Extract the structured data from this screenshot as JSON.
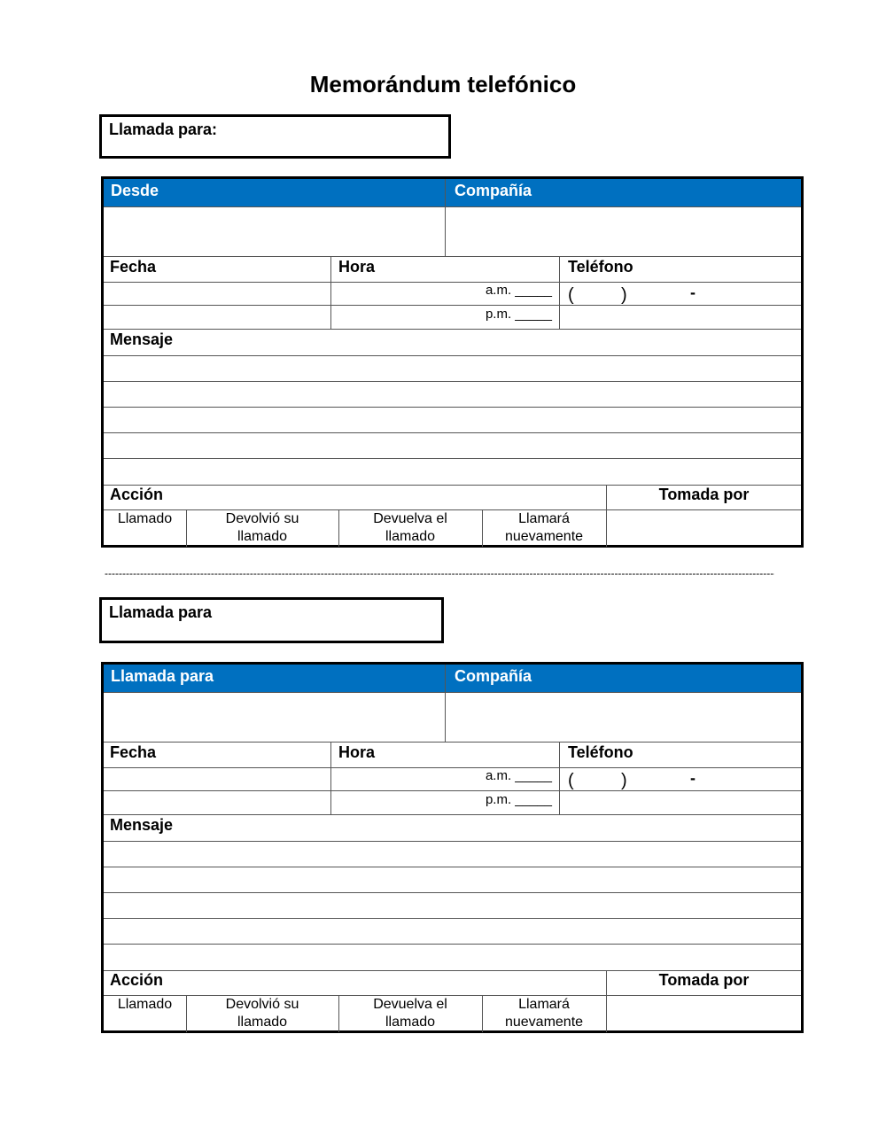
{
  "title": "Memorándum telefónico",
  "accent_color": "#0070C0",
  "separator": "------------------------------------------------------------------------------------------------------------------------------------------------------------------------------------------------------------------",
  "forms": [
    {
      "callfor_box": "Llamada para:",
      "header_left": "Desde",
      "header_right": "Compañía",
      "fecha": "Fecha",
      "hora": "Hora",
      "telefono": "Teléfono",
      "am": "a.m. _____",
      "pm": "p.m. _____",
      "paren_open": "(",
      "paren_close": ")",
      "phone_dash": "-",
      "mensaje": "Mensaje",
      "accion": "Acción",
      "tomada_por": "Tomada por",
      "options": [
        "Llamado",
        "Devolvió su\nllamado",
        "Devuelva el\nllamado",
        "Llamará\nnuevamente"
      ]
    },
    {
      "callfor_box": "Llamada para",
      "header_left": "Llamada para",
      "header_right": "Compañía",
      "fecha": "Fecha",
      "hora": "Hora",
      "telefono": "Teléfono",
      "am": "a.m. _____",
      "pm": "p.m. _____",
      "paren_open": "(",
      "paren_close": ")",
      "phone_dash": "-",
      "mensaje": "Mensaje",
      "accion": "Acción",
      "tomada_por": "Tomada por",
      "options": [
        "Llamado",
        "Devolvió su\nllamado",
        "Devuelva el\nllamado",
        "Llamará\nnuevamente"
      ]
    }
  ]
}
